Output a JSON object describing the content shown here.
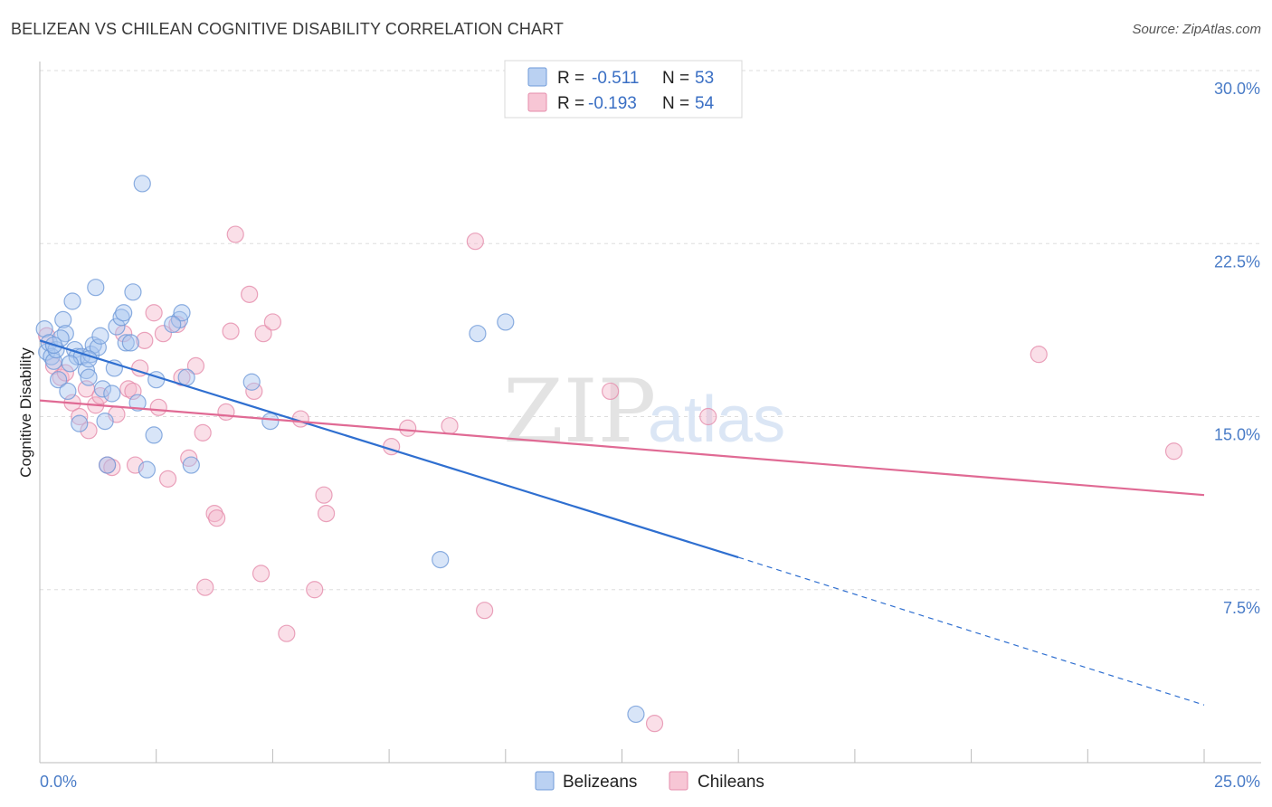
{
  "title": "BELIZEAN VS CHILEAN COGNITIVE DISABILITY CORRELATION CHART",
  "source": "Source: ZipAtlas.com",
  "watermark": {
    "zip": "ZIP",
    "atlas": "atlas"
  },
  "chart_data": {
    "type": "scatter",
    "xlabel": "",
    "ylabel": "Cognitive Disability",
    "xlim": [
      0,
      25
    ],
    "ylim": [
      0,
      30
    ],
    "x_tick_labels": {
      "left": "0.0%",
      "right": "25.0%"
    },
    "y_ticks": [
      7.5,
      15.0,
      22.5,
      30.0
    ],
    "y_tick_labels": [
      "7.5%",
      "15.0%",
      "22.5%",
      "30.0%"
    ],
    "grid": true,
    "legend_position": "top-center",
    "legend": [
      {
        "name": "Belizeans",
        "r_label": "R =",
        "r": "-0.511",
        "n_label": "N =",
        "n": "53"
      },
      {
        "name": "Chileans",
        "r_label": "R =",
        "r": "-0.193",
        "n_label": "N =",
        "n": "54"
      }
    ],
    "colors": {
      "belizeans_fill": "#a9c6ef",
      "belizeans_stroke": "#6f9ad8",
      "belizeans_line": "#2f6fd0",
      "chileans_fill": "#f5b8cb",
      "chileans_stroke": "#e58cab",
      "chileans_line": "#e06a94",
      "grid": "#dddddd",
      "axis": "#bbbbbb"
    },
    "series": [
      {
        "name": "Belizeans",
        "trend": {
          "x0": 0.0,
          "y0": 18.3,
          "x1": 15.0,
          "y1": 8.9,
          "dashed_to_x": 25.0,
          "dashed_to_y": 2.5
        },
        "points": [
          [
            0.1,
            18.8
          ],
          [
            0.15,
            17.8
          ],
          [
            0.2,
            18.2
          ],
          [
            0.25,
            17.6
          ],
          [
            0.3,
            17.4
          ],
          [
            0.35,
            17.9
          ],
          [
            0.4,
            16.6
          ],
          [
            0.5,
            19.2
          ],
          [
            0.55,
            18.6
          ],
          [
            0.6,
            16.1
          ],
          [
            0.7,
            20.0
          ],
          [
            0.75,
            17.9
          ],
          [
            0.8,
            17.6
          ],
          [
            0.85,
            14.7
          ],
          [
            0.9,
            17.6
          ],
          [
            1.0,
            17.0
          ],
          [
            1.05,
            16.7
          ],
          [
            1.1,
            17.7
          ],
          [
            1.15,
            18.1
          ],
          [
            1.25,
            18.0
          ],
          [
            1.3,
            18.5
          ],
          [
            1.35,
            16.2
          ],
          [
            1.4,
            14.8
          ],
          [
            1.45,
            12.9
          ],
          [
            1.55,
            16.0
          ],
          [
            1.6,
            17.1
          ],
          [
            1.65,
            18.9
          ],
          [
            1.75,
            19.3
          ],
          [
            1.8,
            19.5
          ],
          [
            1.85,
            18.2
          ],
          [
            1.95,
            18.2
          ],
          [
            2.0,
            20.4
          ],
          [
            2.1,
            15.6
          ],
          [
            2.2,
            25.1
          ],
          [
            2.3,
            12.7
          ],
          [
            2.45,
            14.2
          ],
          [
            2.5,
            16.6
          ],
          [
            3.0,
            19.2
          ],
          [
            3.05,
            19.5
          ],
          [
            3.15,
            16.7
          ],
          [
            3.25,
            12.9
          ],
          [
            4.55,
            16.5
          ],
          [
            4.95,
            14.8
          ],
          [
            9.4,
            18.6
          ],
          [
            10.0,
            19.1
          ],
          [
            8.6,
            8.8
          ],
          [
            12.8,
            2.1
          ],
          [
            1.2,
            20.6
          ],
          [
            0.45,
            18.4
          ],
          [
            0.65,
            17.3
          ],
          [
            1.05,
            17.5
          ],
          [
            2.85,
            19.0
          ],
          [
            0.3,
            18.1
          ]
        ]
      },
      {
        "name": "Chileans",
        "trend": {
          "x0": 0.0,
          "y0": 15.7,
          "x1": 25.0,
          "y1": 11.6
        },
        "points": [
          [
            0.15,
            18.5
          ],
          [
            0.3,
            17.2
          ],
          [
            0.45,
            16.7
          ],
          [
            0.55,
            16.9
          ],
          [
            0.7,
            15.6
          ],
          [
            0.85,
            15.0
          ],
          [
            1.0,
            16.2
          ],
          [
            1.05,
            14.4
          ],
          [
            1.2,
            15.5
          ],
          [
            1.3,
            15.9
          ],
          [
            1.45,
            12.9
          ],
          [
            1.55,
            12.8
          ],
          [
            1.65,
            15.1
          ],
          [
            1.8,
            18.6
          ],
          [
            1.9,
            16.2
          ],
          [
            2.0,
            16.1
          ],
          [
            2.05,
            12.9
          ],
          [
            2.15,
            17.1
          ],
          [
            2.25,
            18.3
          ],
          [
            2.45,
            19.5
          ],
          [
            2.55,
            15.4
          ],
          [
            2.65,
            18.6
          ],
          [
            2.75,
            12.3
          ],
          [
            2.95,
            19.0
          ],
          [
            3.05,
            16.7
          ],
          [
            3.2,
            13.2
          ],
          [
            3.35,
            17.2
          ],
          [
            3.5,
            14.3
          ],
          [
            3.55,
            7.6
          ],
          [
            3.75,
            10.8
          ],
          [
            3.8,
            10.6
          ],
          [
            4.0,
            15.2
          ],
          [
            4.1,
            18.7
          ],
          [
            4.2,
            22.9
          ],
          [
            4.5,
            20.3
          ],
          [
            4.6,
            16.1
          ],
          [
            4.75,
            8.2
          ],
          [
            4.8,
            18.6
          ],
          [
            5.0,
            19.1
          ],
          [
            5.3,
            5.6
          ],
          [
            5.6,
            14.9
          ],
          [
            5.9,
            7.5
          ],
          [
            6.1,
            11.6
          ],
          [
            6.15,
            10.8
          ],
          [
            7.55,
            13.7
          ],
          [
            7.9,
            14.5
          ],
          [
            8.8,
            14.6
          ],
          [
            9.35,
            22.6
          ],
          [
            9.55,
            6.6
          ],
          [
            12.25,
            16.1
          ],
          [
            13.2,
            1.7
          ],
          [
            14.35,
            15.0
          ],
          [
            21.45,
            17.7
          ],
          [
            24.35,
            13.5
          ]
        ]
      }
    ]
  }
}
